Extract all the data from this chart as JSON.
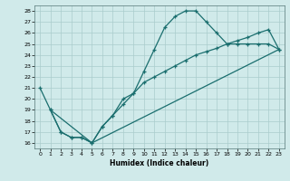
{
  "xlabel": "Humidex (Indice chaleur)",
  "bg_color": "#d0eaea",
  "grid_color": "#aacccc",
  "line_color": "#1a6e6e",
  "xlim": [
    -0.5,
    23.5
  ],
  "ylim": [
    15.5,
    28.5
  ],
  "xticks": [
    0,
    1,
    2,
    3,
    4,
    5,
    6,
    7,
    8,
    9,
    10,
    11,
    12,
    13,
    14,
    15,
    16,
    17,
    18,
    19,
    20,
    21,
    22,
    23
  ],
  "yticks": [
    16,
    17,
    18,
    19,
    20,
    21,
    22,
    23,
    24,
    25,
    26,
    27,
    28
  ],
  "line1_x": [
    0,
    1,
    2,
    3,
    4,
    5,
    6,
    7,
    8,
    9,
    10,
    11,
    12,
    13,
    14,
    15,
    16,
    17,
    18,
    19,
    20,
    21,
    22,
    23
  ],
  "line1_y": [
    21,
    19,
    17,
    16.5,
    16.5,
    16,
    17.5,
    18.5,
    20.0,
    20.5,
    22.5,
    24.5,
    26.5,
    27.5,
    28.0,
    28.0,
    27.0,
    26.0,
    25.0,
    25.0,
    25.0,
    25.0,
    25.0,
    24.5
  ],
  "line2_x": [
    1,
    2,
    3,
    4,
    5,
    6,
    7,
    8,
    9,
    10,
    11,
    12,
    13,
    14,
    15,
    16,
    17,
    18,
    19,
    20,
    21,
    22,
    23
  ],
  "line2_y": [
    19,
    17,
    16.5,
    16.5,
    16,
    17.5,
    18.5,
    19.5,
    20.5,
    21.5,
    22.0,
    22.5,
    23.0,
    23.5,
    24.0,
    24.3,
    24.6,
    25.0,
    25.3,
    25.6,
    26.0,
    26.3,
    24.5
  ],
  "line3_x": [
    1,
    5,
    23
  ],
  "line3_y": [
    19,
    16,
    24.5
  ]
}
